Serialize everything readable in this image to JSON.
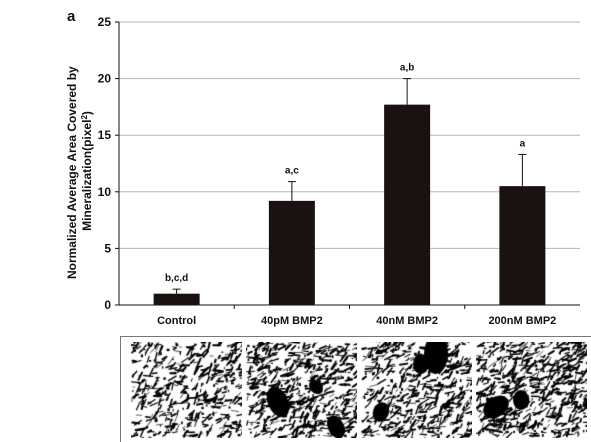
{
  "panel_label": "a",
  "chart_data": {
    "type": "bar",
    "title": "",
    "xlabel": "",
    "ylabel_lines": [
      "Normalized Average Area Covered by",
      "Mineralization(pixel",
      "2",
      ")"
    ],
    "ylabel": "Normalized Average Area Covered by Mineralization(pixel2)",
    "categories": [
      "Control",
      "40pM BMP2",
      "40nM BMP2",
      "200nM BMP2"
    ],
    "values": [
      1.0,
      9.2,
      17.7,
      10.5
    ],
    "error": [
      0.4,
      1.7,
      2.3,
      2.8
    ],
    "annotations": [
      "b,c,d",
      "a,c",
      "a,b",
      "a"
    ],
    "yticks": [
      "0",
      "5",
      "10",
      "15",
      "20",
      "25"
    ],
    "ylim": [
      0,
      25
    ],
    "grid": true,
    "bar_color": "#1a1111"
  },
  "micrographs": [
    {
      "name": "control"
    },
    {
      "name": "40pM BMP2"
    },
    {
      "name": "40nM BMP2"
    },
    {
      "name": "200nM BMP2"
    }
  ]
}
